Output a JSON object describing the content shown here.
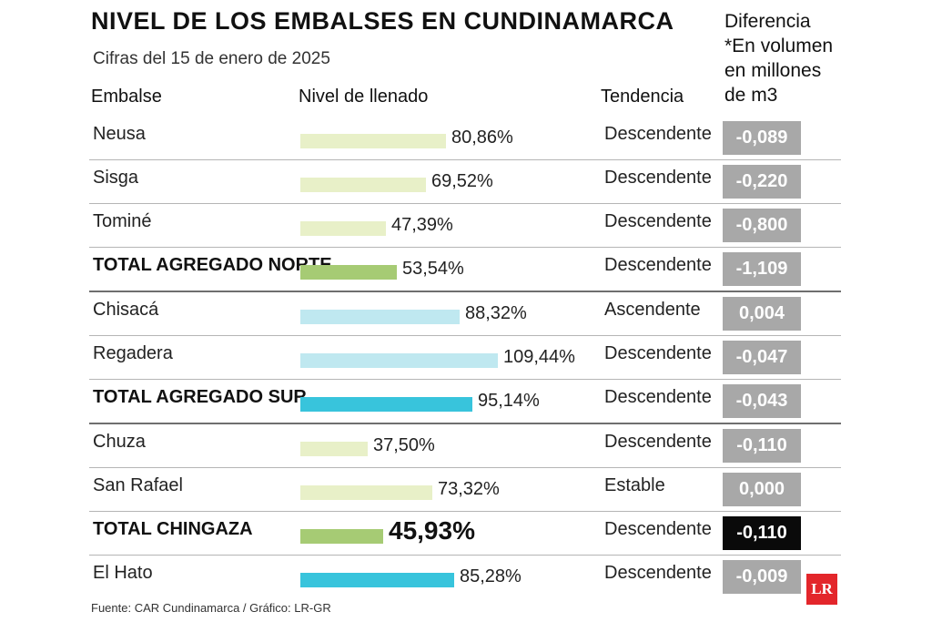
{
  "header": {
    "title": "NIVEL DE LOS EMBALSES EN CUNDINAMARCA",
    "subtitle": "Cifras del 15 de enero de 2025",
    "diff_header_lines": [
      "Diferencia",
      "*En volumen",
      "en millones",
      "de m3"
    ]
  },
  "columns": {
    "embalse": "Embalse",
    "nivel": "Nivel de llenado",
    "tendencia": "Tendencia"
  },
  "colors": {
    "norte_light": "#e8f0c8",
    "norte_total": "#a6cb74",
    "sur_light": "#bfe8f0",
    "sur_total": "#38c4dc",
    "diff_gray": "#a8a8a8",
    "diff_black": "#0a0a0a",
    "logo_red": "#e3262b"
  },
  "chart_data": {
    "type": "bar",
    "title": "NIVEL DE LOS EMBALSES EN CUNDINAMARCA",
    "subtitle": "Cifras del 15 de enero de 2025",
    "xlim": [
      0,
      110
    ],
    "rows": [
      {
        "name": "Neusa",
        "value": 80.86,
        "label": "80,86%",
        "trend": "Descendente",
        "diff": "-0,089",
        "bold": false,
        "style": "norte_light",
        "diff_style": "diff_gray"
      },
      {
        "name": "Sisga",
        "value": 69.52,
        "label": "69,52%",
        "trend": "Descendente",
        "diff": "-0,220",
        "bold": false,
        "style": "norte_light",
        "diff_style": "diff_gray"
      },
      {
        "name": "Tominé",
        "value": 47.39,
        "label": "47,39%",
        "trend": "Descendente",
        "diff": "-0,800",
        "bold": false,
        "style": "norte_light",
        "diff_style": "diff_gray"
      },
      {
        "name": "TOTAL AGREGADO NORTE",
        "value": 53.54,
        "label": "53,54%",
        "trend": "Descendente",
        "diff": "-1,109",
        "bold": true,
        "style": "norte_total",
        "diff_style": "diff_gray",
        "group_end": true
      },
      {
        "name": "Chisacá",
        "value": 88.32,
        "label": "88,32%",
        "trend": "Ascendente",
        "diff": "0,004",
        "bold": false,
        "style": "sur_light",
        "diff_style": "diff_gray"
      },
      {
        "name": "Regadera",
        "value": 109.44,
        "label": "109,44%",
        "trend": "Descendente",
        "diff": "-0,047",
        "bold": false,
        "style": "sur_light",
        "diff_style": "diff_gray"
      },
      {
        "name": "TOTAL AGREGADO SUR",
        "value": 95.14,
        "label": "95,14%",
        "trend": "Descendente",
        "diff": "-0,043",
        "bold": true,
        "style": "sur_total",
        "diff_style": "diff_gray",
        "group_end": true
      },
      {
        "name": "Chuza",
        "value": 37.5,
        "label": "37,50%",
        "trend": "Descendente",
        "diff": "-0,110",
        "bold": false,
        "style": "norte_light",
        "diff_style": "diff_gray"
      },
      {
        "name": "San Rafael",
        "value": 73.32,
        "label": "73,32%",
        "trend": "Estable",
        "diff": "0,000",
        "bold": false,
        "style": "norte_light",
        "diff_style": "diff_gray"
      },
      {
        "name": "TOTAL CHINGAZA",
        "value": 45.93,
        "label": "45,93%",
        "trend": "Descendente",
        "diff": "-0,110",
        "bold": true,
        "big": true,
        "style": "norte_total",
        "diff_style": "diff_black"
      },
      {
        "name": "El Hato",
        "value": 85.28,
        "label": "85,28%",
        "trend": "Descendente",
        "diff": "-0,009",
        "bold": false,
        "style": "sur_total",
        "diff_style": "diff_gray"
      }
    ]
  },
  "footer": {
    "source": "Fuente: CAR Cundinamarca / Gráfico: LR-GR",
    "logo_text": "LR"
  }
}
